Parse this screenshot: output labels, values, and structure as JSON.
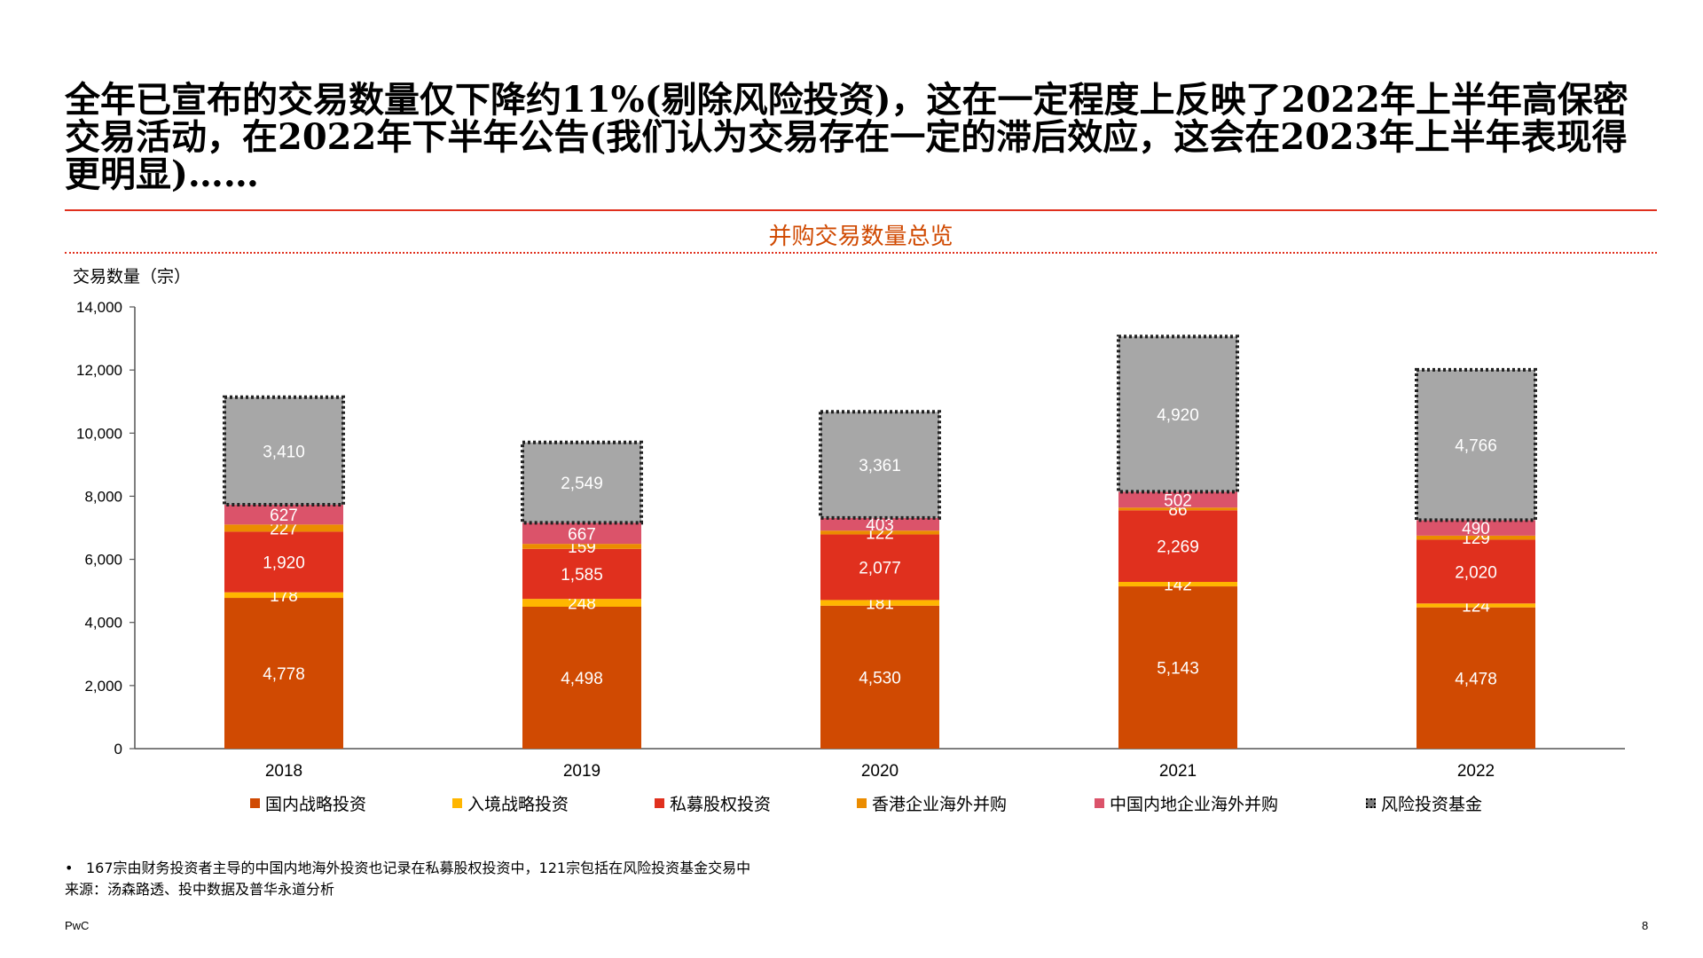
{
  "headline": "全年已宣布的交易数量仅下降约11%(剔除风险投资)，这在一定程度上反映了2022年上半年高保密交易活动，在2022年下半年公告(我们认为交易存在一定的滞后效应，这会在2023年上半年表现得更明显)……",
  "colors": {
    "accent_rule": "#e0301e",
    "title": "#d04a02",
    "domestic": "#d04a02",
    "inbound": "#ffb600",
    "pe": "#e0301e",
    "hk": "#eb8c00",
    "mainland_outbound": "#db536a",
    "vc": "#a7a7a7"
  },
  "chart_data": {
    "type": "bar",
    "stacked": true,
    "title": "并购交易数量总览",
    "ylabel": "交易数量（宗）",
    "xlabel": "",
    "ylim": [
      0,
      14000
    ],
    "yticks": [
      0,
      2000,
      4000,
      6000,
      8000,
      10000,
      12000,
      14000
    ],
    "ytick_labels": [
      "0",
      "2,000",
      "4,000",
      "6,000",
      "8,000",
      "10,000",
      "12,000",
      "14,000"
    ],
    "categories": [
      "2018",
      "2019",
      "2020",
      "2021",
      "2022"
    ],
    "series": [
      {
        "name": "国内战略投资",
        "color_key": "domestic",
        "values": [
          4778,
          4498,
          4530,
          5143,
          4478
        ],
        "labels": [
          "4,778",
          "4,498",
          "4,530",
          "5,143",
          "4,478"
        ]
      },
      {
        "name": "入境战略投资",
        "color_key": "inbound",
        "values": [
          178,
          248,
          181,
          142,
          124
        ],
        "labels": [
          "178",
          "248",
          "181",
          "142",
          "124"
        ]
      },
      {
        "name": "私募股权投资",
        "color_key": "pe",
        "values": [
          1920,
          1585,
          2077,
          2269,
          2020
        ],
        "labels": [
          "1,920",
          "1,585",
          "2,077",
          "2,269",
          "2,020"
        ]
      },
      {
        "name": "香港企业海外并购",
        "color_key": "hk",
        "values": [
          227,
          159,
          122,
          86,
          129
        ],
        "labels": [
          "227",
          "159",
          "122",
          "86",
          "129"
        ]
      },
      {
        "name": "中国内地企业海外并购",
        "color_key": "mainland_outbound",
        "values": [
          627,
          667,
          403,
          502,
          490
        ],
        "labels": [
          "627",
          "667",
          "403",
          "502",
          "490"
        ]
      },
      {
        "name": "风险投资基金",
        "color_key": "vc",
        "values": [
          3410,
          2549,
          3361,
          4920,
          4766
        ],
        "labels": [
          "3,410",
          "2,549",
          "3,361",
          "4,920",
          "4,766"
        ],
        "outlined": true
      }
    ],
    "legend_position": "bottom",
    "grid": false
  },
  "footnote": "167宗由财务投资者主导的中国内地海外投资也记录在私募股权投资中，121宗包括在风险投资基金交易中",
  "footnote_bullet": "•",
  "source": "来源：汤森路透、投中数据及普华永道分析",
  "brand": "PwC",
  "page_number": "8"
}
